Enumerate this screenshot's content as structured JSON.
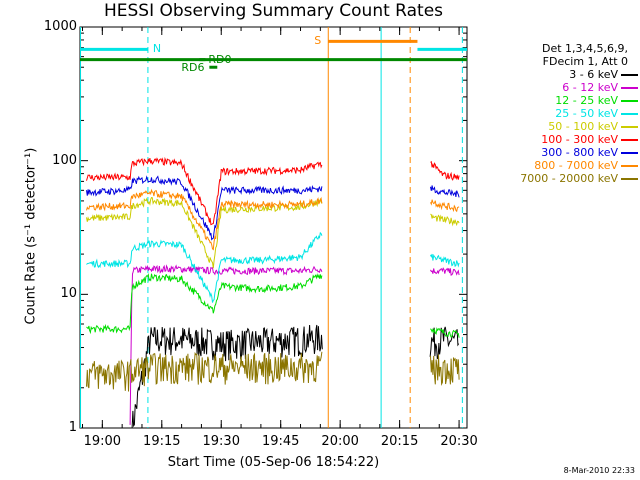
{
  "chart_data": {
    "type": "line",
    "title": "HESSI Observing Summary Count Rates",
    "xlabel": "Start Time (05-Sep-06 18:54:22)",
    "ylabel": "Count Rate (s⁻¹ detector⁻¹)",
    "y_scale": "log",
    "ylim": [
      1,
      1000
    ],
    "xlim": [
      "18:54:22",
      "20:32:00"
    ],
    "x_ticks": [
      "19:00",
      "19:15",
      "19:30",
      "19:45",
      "20:00",
      "20:15",
      "20:30"
    ],
    "y_ticks": [
      "1",
      "10",
      "100",
      "1000"
    ],
    "legend": {
      "placement": "right",
      "header": [
        "Det 1,3,4,5,6,9,",
        "FDecim 1, Att 0"
      ]
    },
    "data_gaps": [
      [
        "19:55:30",
        "20:22:40"
      ]
    ],
    "series": [
      {
        "name": "3 - 6 keV",
        "color": "#000000",
        "x": [
          "19:07:30",
          "19:12",
          "19:20",
          "19:30",
          "19:40",
          "19:50",
          "19:55",
          "20:23",
          "20:26",
          "20:30"
        ],
        "y": [
          1,
          4.5,
          4.5,
          4.2,
          4.3,
          4.5,
          4.6,
          4.3,
          4.5,
          4.2
        ]
      },
      {
        "name": "6 - 12 keV",
        "color": "#cc00cc",
        "x": [
          "19:07",
          "19:07:30",
          "19:12",
          "19:20",
          "19:28",
          "19:30",
          "19:40",
          "19:50",
          "19:55",
          "20:23",
          "20:26",
          "20:30"
        ],
        "y": [
          1,
          15,
          15.5,
          15.5,
          15,
          15,
          15,
          15,
          15.5,
          15,
          15,
          14.5
        ]
      },
      {
        "name": "12 - 25 keV",
        "color": "#00dd00",
        "x": [
          "18:56",
          "19:07",
          "19:07:30",
          "19:12",
          "19:20",
          "19:28",
          "19:30",
          "19:40",
          "19:50",
          "19:55",
          "20:23",
          "20:26",
          "20:30"
        ],
        "y": [
          5.5,
          5.5,
          11.5,
          13.5,
          13,
          7.5,
          11.5,
          11,
          11.5,
          14,
          5.5,
          5.2,
          5
        ]
      },
      {
        "name": "25 - 50 keV",
        "color": "#00e5e5",
        "x": [
          "18:56",
          "19:07",
          "19:07:30",
          "19:12",
          "19:20",
          "19:28",
          "19:30",
          "19:40",
          "19:50",
          "19:55",
          "20:23",
          "20:26",
          "20:30"
        ],
        "y": [
          17,
          17,
          22,
          24,
          23.5,
          9,
          18,
          18,
          19,
          28,
          19,
          18,
          17
        ]
      },
      {
        "name": "50 - 100 keV",
        "color": "#cccc00",
        "x": [
          "18:56",
          "19:07",
          "19:07:30",
          "19:12",
          "19:20",
          "19:28",
          "19:30",
          "19:40",
          "19:50",
          "19:55",
          "20:23",
          "20:26",
          "20:30"
        ],
        "y": [
          37,
          38,
          46,
          50,
          48,
          16,
          43,
          44,
          45,
          50,
          38,
          36,
          35
        ]
      },
      {
        "name": "100 - 300 keV",
        "color": "#ff0000",
        "x": [
          "18:56",
          "19:07",
          "19:07:30",
          "19:12",
          "19:20",
          "19:28",
          "19:30",
          "19:40",
          "19:50",
          "19:55",
          "20:23",
          "20:26",
          "20:30"
        ],
        "y": [
          75,
          75,
          95,
          100,
          95,
          32,
          83,
          84,
          85,
          95,
          95,
          78,
          75
        ]
      },
      {
        "name": "300 - 800 keV",
        "color": "#0000dd",
        "x": [
          "18:56",
          "19:07",
          "19:07:30",
          "19:12",
          "19:20",
          "19:28",
          "19:30",
          "19:40",
          "19:50",
          "19:55",
          "20:23",
          "20:26",
          "20:30"
        ],
        "y": [
          58,
          60,
          70,
          73,
          69,
          26,
          60,
          60,
          60,
          62,
          62,
          58,
          56
        ]
      },
      {
        "name": "800 - 7000 keV",
        "color": "#ff8800",
        "x": [
          "18:56",
          "19:07",
          "19:07:30",
          "19:12",
          "19:20",
          "19:28",
          "19:30",
          "19:40",
          "19:50",
          "19:55",
          "20:23",
          "20:26",
          "20:30"
        ],
        "y": [
          45,
          46,
          54,
          57,
          54,
          22,
          47,
          47,
          47,
          50,
          50,
          46,
          44
        ]
      },
      {
        "name": "7000 - 20000 keV",
        "color": "#8b7500",
        "x": [
          "18:56",
          "19:07",
          "19:07:30",
          "19:12",
          "19:20",
          "19:30",
          "19:40",
          "19:50",
          "19:55",
          "20:23",
          "20:26",
          "20:30"
        ],
        "y": [
          2.5,
          2.5,
          2.6,
          2.8,
          2.8,
          2.8,
          2.8,
          2.8,
          2.9,
          2.7,
          2.8,
          2.7
        ]
      }
    ],
    "annotations": [
      {
        "label": "N",
        "color": "#00e5e5",
        "segments": [
          [
            "18:54:22",
            "19:11:30"
          ],
          [
            "20:19:30",
            "20:32:00"
          ]
        ],
        "y": 680
      },
      {
        "label": "S",
        "color": "#ff8800",
        "segments": [
          [
            "19:57:00",
            "20:19:30"
          ]
        ],
        "y": 780
      },
      {
        "label": "",
        "color": "#008800",
        "segments": [
          [
            "18:54:22",
            "20:32:00"
          ]
        ],
        "y": 570
      },
      {
        "label": "RD0",
        "color": "#008800",
        "segments": [
          [
            "19:24:30",
            "19:26:00"
          ]
        ],
        "y": 570
      },
      {
        "label": "RD6",
        "color": "#008800",
        "segments": [
          [
            "19:27:00",
            "19:29:00"
          ]
        ],
        "y": 500
      }
    ],
    "vertical_markers": [
      {
        "time": "19:11:30",
        "color": "#00e5e5",
        "style": "dashed"
      },
      {
        "time": "20:30:50",
        "color": "#00e5e5",
        "style": "dashed"
      },
      {
        "time": "20:10:20",
        "color": "#00e5e5",
        "style": "solid"
      },
      {
        "time": "20:17:40",
        "color": "#ff8800",
        "style": "dashed"
      },
      {
        "time": "19:57:00",
        "color": "#ff8800",
        "style": "solid"
      },
      {
        "time": "18:54:30",
        "color": "#00e5e5",
        "style": "solid"
      }
    ]
  },
  "footer": "8-Mar-2010 22:33"
}
